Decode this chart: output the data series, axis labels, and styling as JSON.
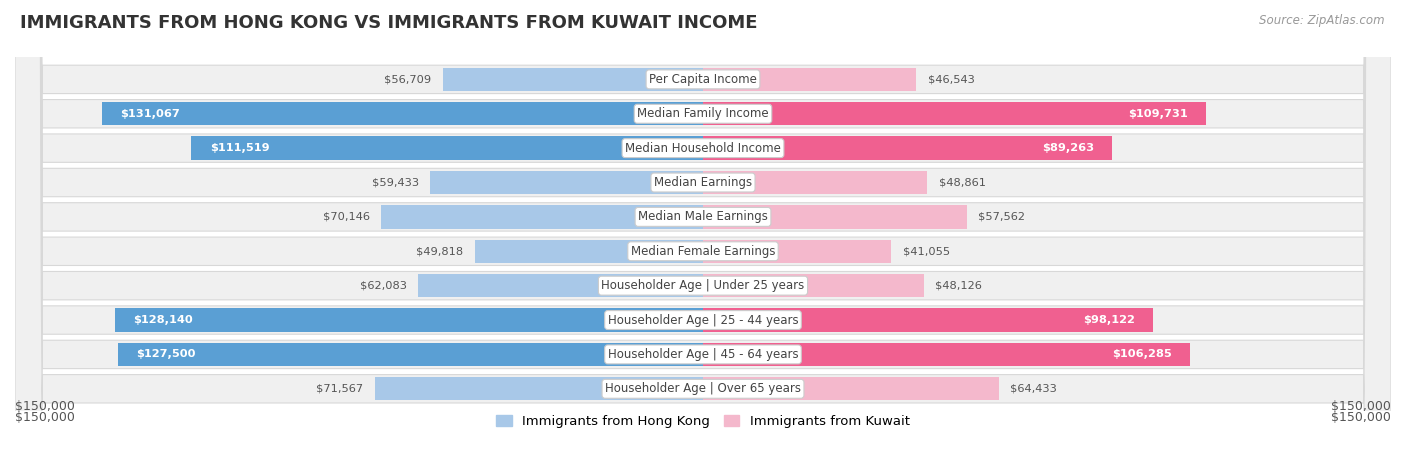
{
  "title": "IMMIGRANTS FROM HONG KONG VS IMMIGRANTS FROM KUWAIT INCOME",
  "source": "Source: ZipAtlas.com",
  "categories": [
    "Per Capita Income",
    "Median Family Income",
    "Median Household Income",
    "Median Earnings",
    "Median Male Earnings",
    "Median Female Earnings",
    "Householder Age | Under 25 years",
    "Householder Age | 25 - 44 years",
    "Householder Age | 45 - 64 years",
    "Householder Age | Over 65 years"
  ],
  "hk_values": [
    56709,
    131067,
    111519,
    59433,
    70146,
    49818,
    62083,
    128140,
    127500,
    71567
  ],
  "kw_values": [
    46543,
    109731,
    89263,
    48861,
    57562,
    41055,
    48126,
    98122,
    106285,
    64433
  ],
  "hk_labels": [
    "$56,709",
    "$131,067",
    "$111,519",
    "$59,433",
    "$70,146",
    "$49,818",
    "$62,083",
    "$128,140",
    "$127,500",
    "$71,567"
  ],
  "kw_labels": [
    "$46,543",
    "$109,731",
    "$89,263",
    "$48,861",
    "$57,562",
    "$41,055",
    "$48,126",
    "$98,122",
    "$106,285",
    "$64,433"
  ],
  "hk_color_light": "#a8c8e8",
  "hk_color_dark": "#5a9fd4",
  "kw_color_light": "#f4b8cc",
  "kw_color_dark": "#f06090",
  "hk_inside_threshold": 100000,
  "kw_inside_threshold": 85000,
  "max_val": 150000,
  "bg_color": "#ffffff",
  "row_color": "#f0f0f0",
  "row_border": "#d8d8d8",
  "legend_hk": "Immigrants from Hong Kong",
  "legend_kw": "Immigrants from Kuwait",
  "xlabel_left": "$150,000",
  "xlabel_right": "$150,000",
  "title_fontsize": 13,
  "label_fontsize": 8.5,
  "val_fontsize": 8.2
}
